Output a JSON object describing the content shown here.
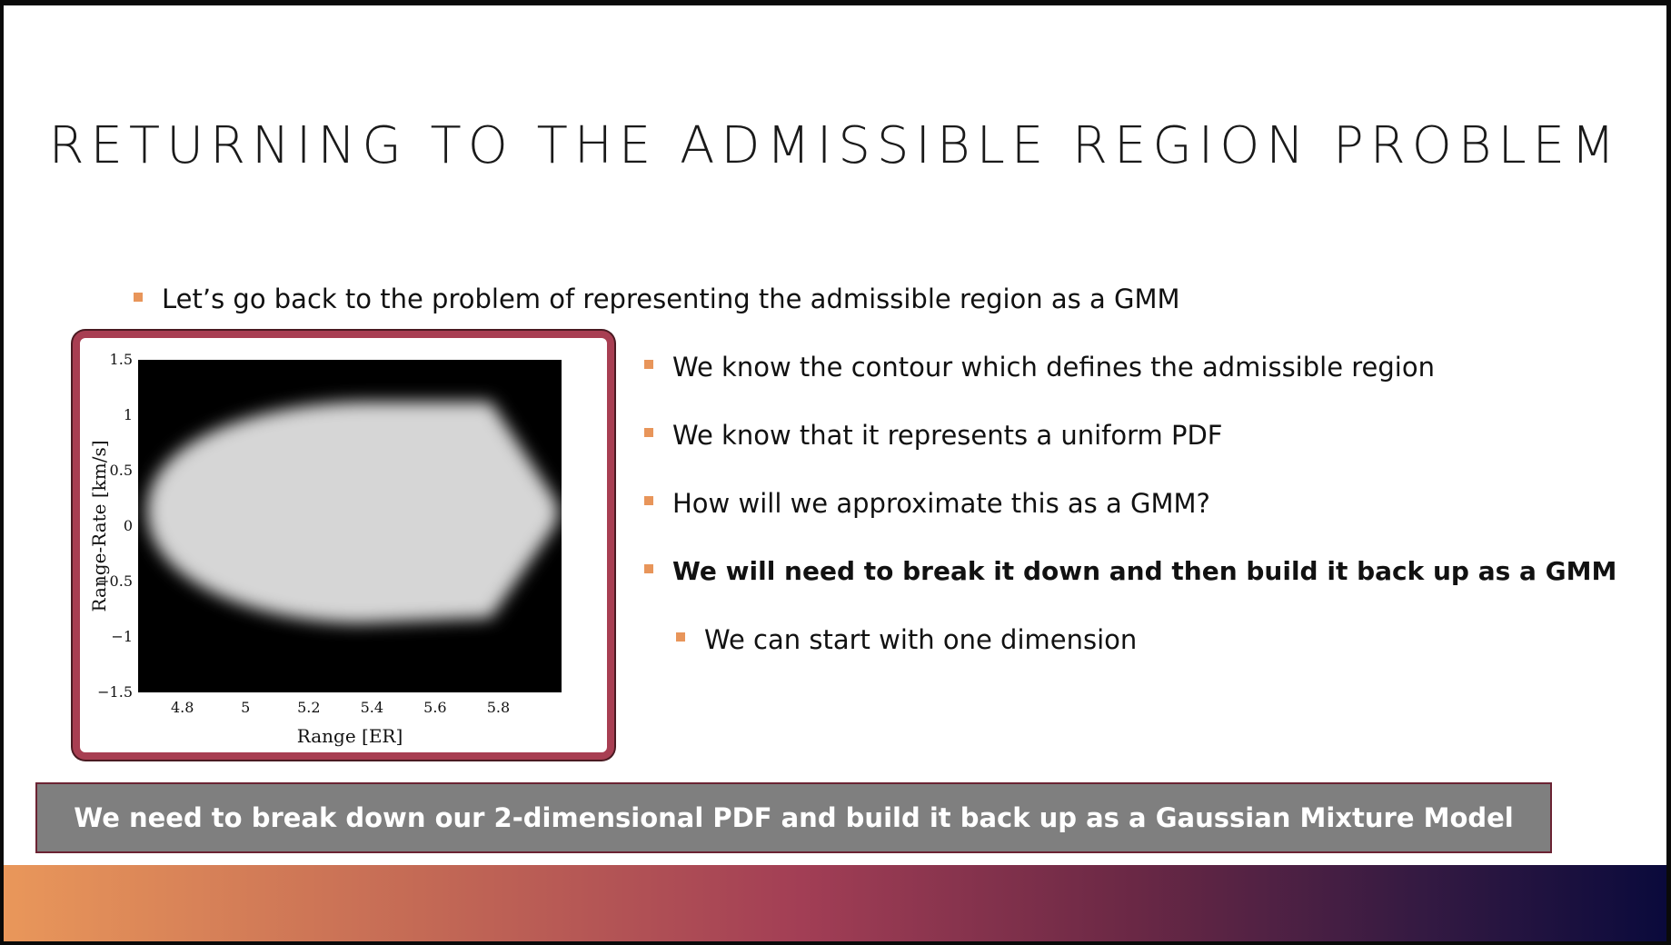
{
  "slide": {
    "title": "RETURNING TO THE ADMISSIBLE REGION PROBLEM",
    "bullets": [
      {
        "text": "Let’s go back to the problem of representing the admissible region as a GMM",
        "bold": false,
        "level": 1
      },
      {
        "text": "We know the contour which defines the admissible region",
        "bold": false,
        "level": 1
      },
      {
        "text": "We know that it represents a uniform PDF",
        "bold": false,
        "level": 1
      },
      {
        "text": "How will we approximate this as a GMM?",
        "bold": false,
        "level": 1
      },
      {
        "text": "We will need to break it down and then build it back up as a GMM",
        "bold": true,
        "level": 1
      },
      {
        "text": "We can start with one dimension",
        "bold": false,
        "level": 2
      }
    ],
    "callout": "We need to break down our 2-dimensional PDF and build it back up as a Gaussian Mixture Model"
  },
  "figure": {
    "xlabel": "Range [ER]",
    "ylabel": "Range-Rate [km/s]",
    "xticks": [
      "4.8",
      "5",
      "5.2",
      "5.4",
      "5.6",
      "5.8"
    ],
    "yticks": [
      "1.5",
      "1",
      "0.5",
      "0",
      "−0.5",
      "−1",
      "−1.5"
    ]
  },
  "chart_data": {
    "type": "heatmap",
    "title": "",
    "xlabel": "Range [ER]",
    "ylabel": "Range-Rate [km/s]",
    "xlim": [
      4.66,
      6.0
    ],
    "ylim": [
      -1.5,
      1.5
    ],
    "x_ticks": [
      4.8,
      5.0,
      5.2,
      5.4,
      5.6,
      5.8
    ],
    "y_ticks": [
      1.5,
      1.0,
      0.5,
      0,
      -0.5,
      -1.0,
      -1.5
    ],
    "description_values": {
      "region_x_range": [
        4.68,
        5.98
      ],
      "region_ydot_max": 1.1,
      "region_ydot_min": -1.2,
      "background_value": 0,
      "region_value": 0.82
    }
  },
  "colors": {
    "accent": "#e8955a",
    "frame": "#a83e52",
    "callout_bg": "#7f7f7f"
  }
}
